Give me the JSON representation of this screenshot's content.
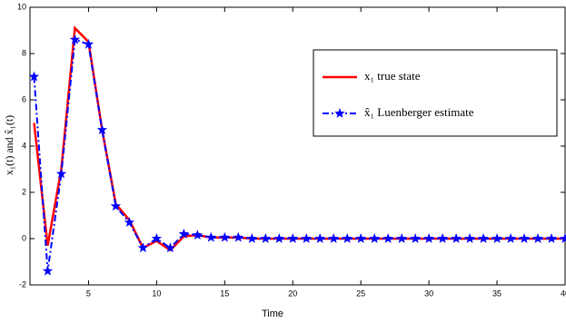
{
  "chart_data": {
    "type": "line",
    "xlabel": "Time",
    "ylabel": "x₁(t) and x̂₁(t)",
    "x": [
      1,
      2,
      3,
      4,
      5,
      6,
      7,
      8,
      9,
      10,
      11,
      12,
      13,
      14,
      15,
      16,
      17,
      18,
      19,
      20,
      21,
      22,
      23,
      24,
      25,
      26,
      27,
      28,
      29,
      30,
      31,
      32,
      33,
      34,
      35,
      36,
      37,
      38,
      39,
      40
    ],
    "series": [
      {
        "name": "x₁ true state",
        "color": "#ff0000",
        "style": "solid",
        "values": [
          5,
          -0.3,
          3,
          9.1,
          8.5,
          4.7,
          1.5,
          0.8,
          -0.4,
          -0.1,
          -0.5,
          0.1,
          0.15,
          0.05,
          0.05,
          0.05,
          0,
          0,
          0,
          0,
          0,
          0,
          0,
          0,
          0,
          0,
          0,
          0,
          0,
          0,
          0,
          0,
          0,
          0,
          0,
          0,
          0,
          0,
          0,
          0
        ]
      },
      {
        "name": "x̂₁ Luenberger estimate",
        "color": "#0000ff",
        "style": "dashdot",
        "values": [
          7,
          -1.4,
          2.8,
          8.6,
          8.4,
          4.7,
          1.4,
          0.7,
          -0.4,
          0,
          -0.4,
          0.2,
          0.15,
          0.05,
          0.05,
          0.05,
          0,
          0,
          0,
          0,
          0,
          0,
          0,
          0,
          0,
          0,
          0,
          0,
          0,
          0,
          0,
          0,
          0,
          0,
          0,
          0,
          0,
          0,
          0,
          0
        ]
      }
    ],
    "xlim": [
      0.7,
      40
    ],
    "xticks": [
      5,
      10,
      15,
      20,
      25,
      30,
      35,
      40
    ],
    "ylim": [
      -2,
      10
    ],
    "yticks": [
      -2,
      0,
      2,
      4,
      6,
      8,
      10
    ],
    "legend": "upper right"
  }
}
